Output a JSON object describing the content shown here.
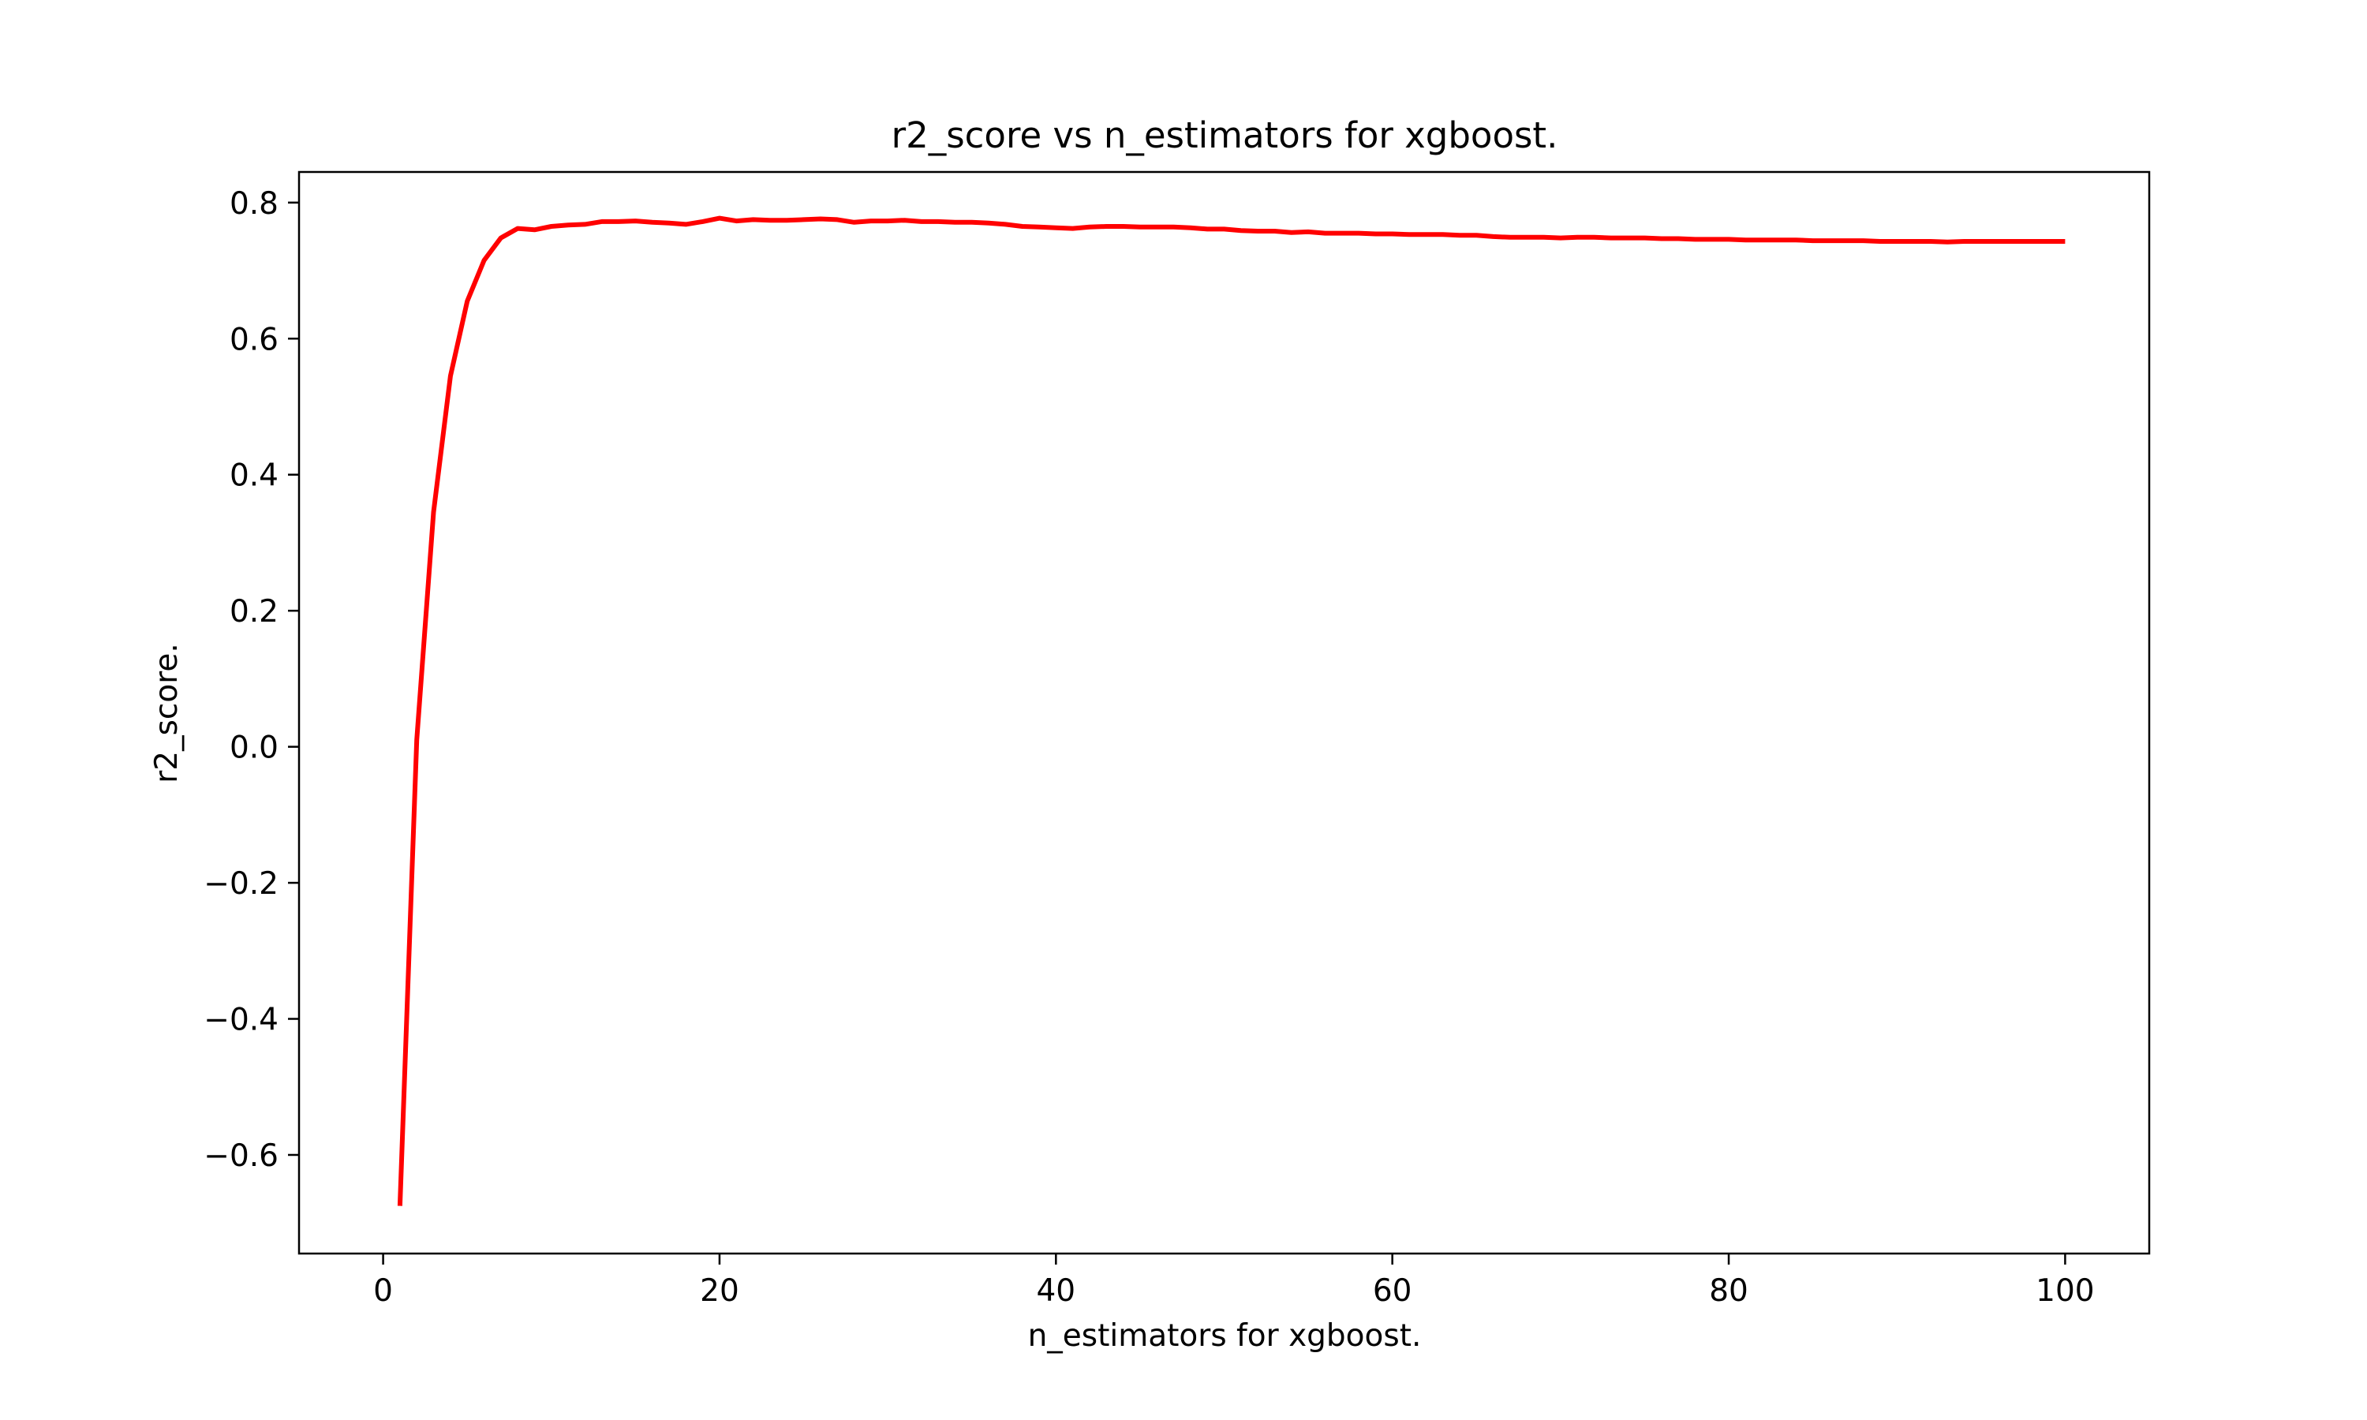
{
  "chart_data": {
    "type": "line",
    "title": "r2_score vs n_estimators for xgboost.",
    "xlabel": "n_estimators for xgboost.",
    "ylabel": "r2_score.",
    "xlim": [
      -5,
      105
    ],
    "ylim": [
      -0.745,
      0.845
    ],
    "x_ticks": [
      0,
      20,
      40,
      60,
      80,
      100
    ],
    "x_tick_labels": [
      "0",
      "20",
      "40",
      "60",
      "80",
      "100"
    ],
    "y_ticks": [
      -0.6,
      -0.4,
      -0.2,
      0.0,
      0.2,
      0.4,
      0.6,
      0.8
    ],
    "y_tick_labels": [
      "−0.6",
      "−0.4",
      "−0.2",
      "0.0",
      "0.2",
      "0.4",
      "0.6",
      "0.8"
    ],
    "grid": false,
    "series": [
      {
        "color": "#ff0000",
        "x": [
          1,
          2,
          3,
          4,
          5,
          6,
          7,
          8,
          9,
          10,
          11,
          12,
          13,
          14,
          15,
          16,
          17,
          18,
          19,
          20,
          21,
          22,
          23,
          24,
          25,
          26,
          27,
          28,
          29,
          30,
          31,
          32,
          33,
          34,
          35,
          36,
          37,
          38,
          39,
          40,
          41,
          42,
          43,
          44,
          45,
          46,
          47,
          48,
          49,
          50,
          51,
          52,
          53,
          54,
          55,
          56,
          57,
          58,
          59,
          60,
          61,
          62,
          63,
          64,
          65,
          66,
          67,
          68,
          69,
          70,
          71,
          72,
          73,
          74,
          75,
          76,
          77,
          78,
          79,
          80,
          81,
          82,
          83,
          84,
          85,
          86,
          87,
          88,
          89,
          90,
          91,
          92,
          93,
          94,
          95,
          96,
          97,
          98,
          99,
          100
        ],
        "y": [
          -0.675,
          0.01,
          0.345,
          0.545,
          0.655,
          0.715,
          0.748,
          0.762,
          0.76,
          0.765,
          0.767,
          0.768,
          0.772,
          0.772,
          0.773,
          0.771,
          0.77,
          0.768,
          0.772,
          0.777,
          0.773,
          0.775,
          0.774,
          0.774,
          0.775,
          0.776,
          0.775,
          0.771,
          0.773,
          0.773,
          0.774,
          0.772,
          0.772,
          0.771,
          0.771,
          0.77,
          0.768,
          0.765,
          0.764,
          0.763,
          0.762,
          0.764,
          0.765,
          0.765,
          0.764,
          0.764,
          0.764,
          0.763,
          0.761,
          0.761,
          0.759,
          0.758,
          0.758,
          0.756,
          0.757,
          0.755,
          0.755,
          0.755,
          0.754,
          0.754,
          0.753,
          0.753,
          0.753,
          0.752,
          0.752,
          0.75,
          0.749,
          0.749,
          0.749,
          0.748,
          0.749,
          0.749,
          0.748,
          0.748,
          0.748,
          0.747,
          0.747,
          0.746,
          0.746,
          0.746,
          0.745,
          0.745,
          0.745,
          0.745,
          0.744,
          0.744,
          0.744,
          0.744,
          0.743,
          0.743,
          0.743,
          0.743,
          0.742,
          0.743,
          0.743,
          0.743,
          0.743,
          0.743,
          0.743,
          0.743
        ]
      }
    ]
  }
}
